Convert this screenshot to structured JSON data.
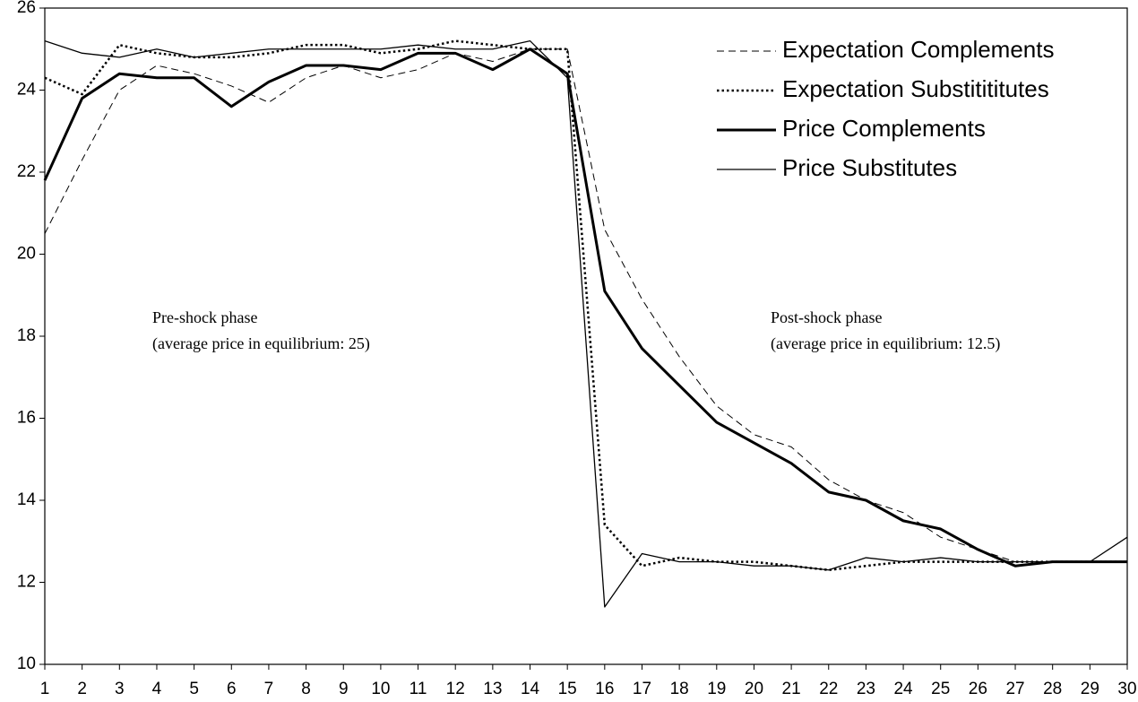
{
  "chart_data": {
    "type": "line",
    "x": [
      1,
      2,
      3,
      4,
      5,
      6,
      7,
      8,
      9,
      10,
      11,
      12,
      13,
      14,
      15,
      16,
      17,
      18,
      19,
      20,
      21,
      22,
      23,
      24,
      25,
      26,
      27,
      28,
      29,
      30
    ],
    "xlim": [
      1,
      30
    ],
    "xticks": [
      1,
      2,
      3,
      4,
      5,
      6,
      7,
      8,
      9,
      10,
      11,
      12,
      13,
      14,
      15,
      16,
      17,
      18,
      19,
      20,
      21,
      22,
      23,
      24,
      25,
      26,
      27,
      28,
      29,
      30
    ],
    "ylim": [
      10,
      26
    ],
    "yticks": [
      10,
      12,
      14,
      16,
      18,
      20,
      22,
      24,
      26
    ],
    "legend": "top-right",
    "series": [
      {
        "name": "Expectation Complements",
        "color": "#000000",
        "style": "dashed",
        "values": [
          20.5,
          22.3,
          24.0,
          24.6,
          24.4,
          24.1,
          23.7,
          24.3,
          24.6,
          24.3,
          24.5,
          24.9,
          24.7,
          25.0,
          25.0,
          20.6,
          18.9,
          17.5,
          16.3,
          15.6,
          15.3,
          14.5,
          14.0,
          13.7,
          13.1,
          12.8,
          12.5,
          12.5,
          12.5,
          12.5
        ]
      },
      {
        "name": "Expectation Substitititutes",
        "color": "#000000",
        "style": "dotted",
        "values": [
          24.3,
          23.9,
          25.1,
          24.9,
          24.8,
          24.8,
          24.9,
          25.1,
          25.1,
          24.9,
          25.0,
          25.2,
          25.1,
          25.0,
          25.0,
          13.4,
          12.4,
          12.6,
          12.5,
          12.5,
          12.4,
          12.3,
          12.4,
          12.5,
          12.5,
          12.5,
          12.5,
          12.5,
          12.5,
          12.5
        ]
      },
      {
        "name": "Price Complements",
        "color": "#000000",
        "style": "bold",
        "values": [
          21.8,
          23.8,
          24.4,
          24.3,
          24.3,
          23.6,
          24.2,
          24.6,
          24.6,
          24.5,
          24.9,
          24.9,
          24.5,
          25.0,
          24.4,
          19.1,
          17.7,
          16.8,
          15.9,
          15.4,
          14.9,
          14.2,
          14.0,
          13.5,
          13.3,
          12.8,
          12.4,
          12.5,
          12.5,
          12.5
        ]
      },
      {
        "name": "Price Substitutes",
        "color": "#000000",
        "style": "solid",
        "values": [
          25.2,
          24.9,
          24.8,
          25.0,
          24.8,
          24.9,
          25.0,
          25.0,
          25.0,
          25.0,
          25.1,
          25.0,
          25.0,
          25.2,
          24.3,
          11.4,
          12.7,
          12.5,
          12.5,
          12.4,
          12.4,
          12.3,
          12.6,
          12.5,
          12.6,
          12.5,
          12.5,
          12.5,
          12.5,
          13.1
        ]
      }
    ],
    "annotations": [
      [
        "Pre-shock phase",
        "(average price in equilibrium: 25)"
      ],
      [
        "Post-shock phase",
        "(average price in equilibrium: 12.5)"
      ]
    ]
  }
}
